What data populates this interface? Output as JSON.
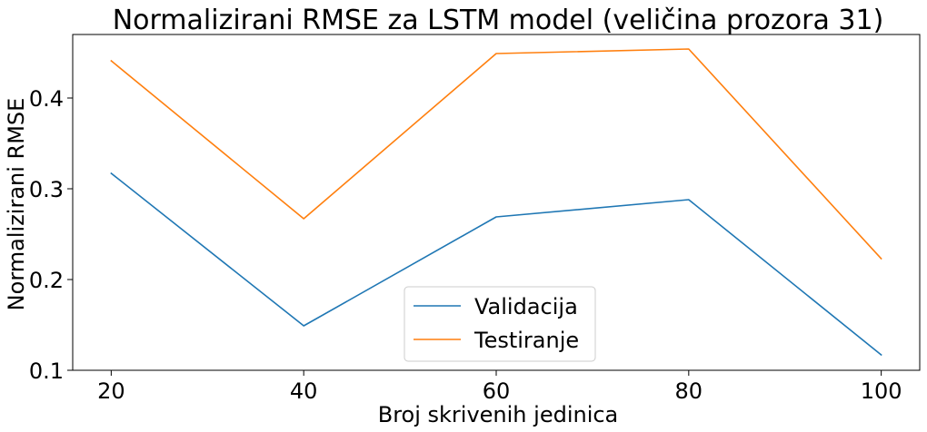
{
  "chart_data": {
    "type": "line",
    "title": "Normalizirani RMSE za LSTM model (veličina prozora 31)",
    "xlabel": "Broj skrivenih jedinica",
    "ylabel": "Normalizirani RMSE",
    "x": [
      20,
      40,
      60,
      80,
      100
    ],
    "xticks": [
      20,
      40,
      60,
      80,
      100
    ],
    "yticks": [
      0.1,
      0.2,
      0.3,
      0.4
    ],
    "xlim": [
      16,
      104
    ],
    "ylim": [
      0.1,
      0.47
    ],
    "grid": false,
    "legend_position": "lower center",
    "series": [
      {
        "name": "Validacija",
        "color": "#1f77b4",
        "values": [
          0.317,
          0.149,
          0.269,
          0.288,
          0.117
        ]
      },
      {
        "name": "Testiranje",
        "color": "#ff7f0e",
        "values": [
          0.441,
          0.267,
          0.449,
          0.454,
          0.223
        ]
      }
    ]
  }
}
